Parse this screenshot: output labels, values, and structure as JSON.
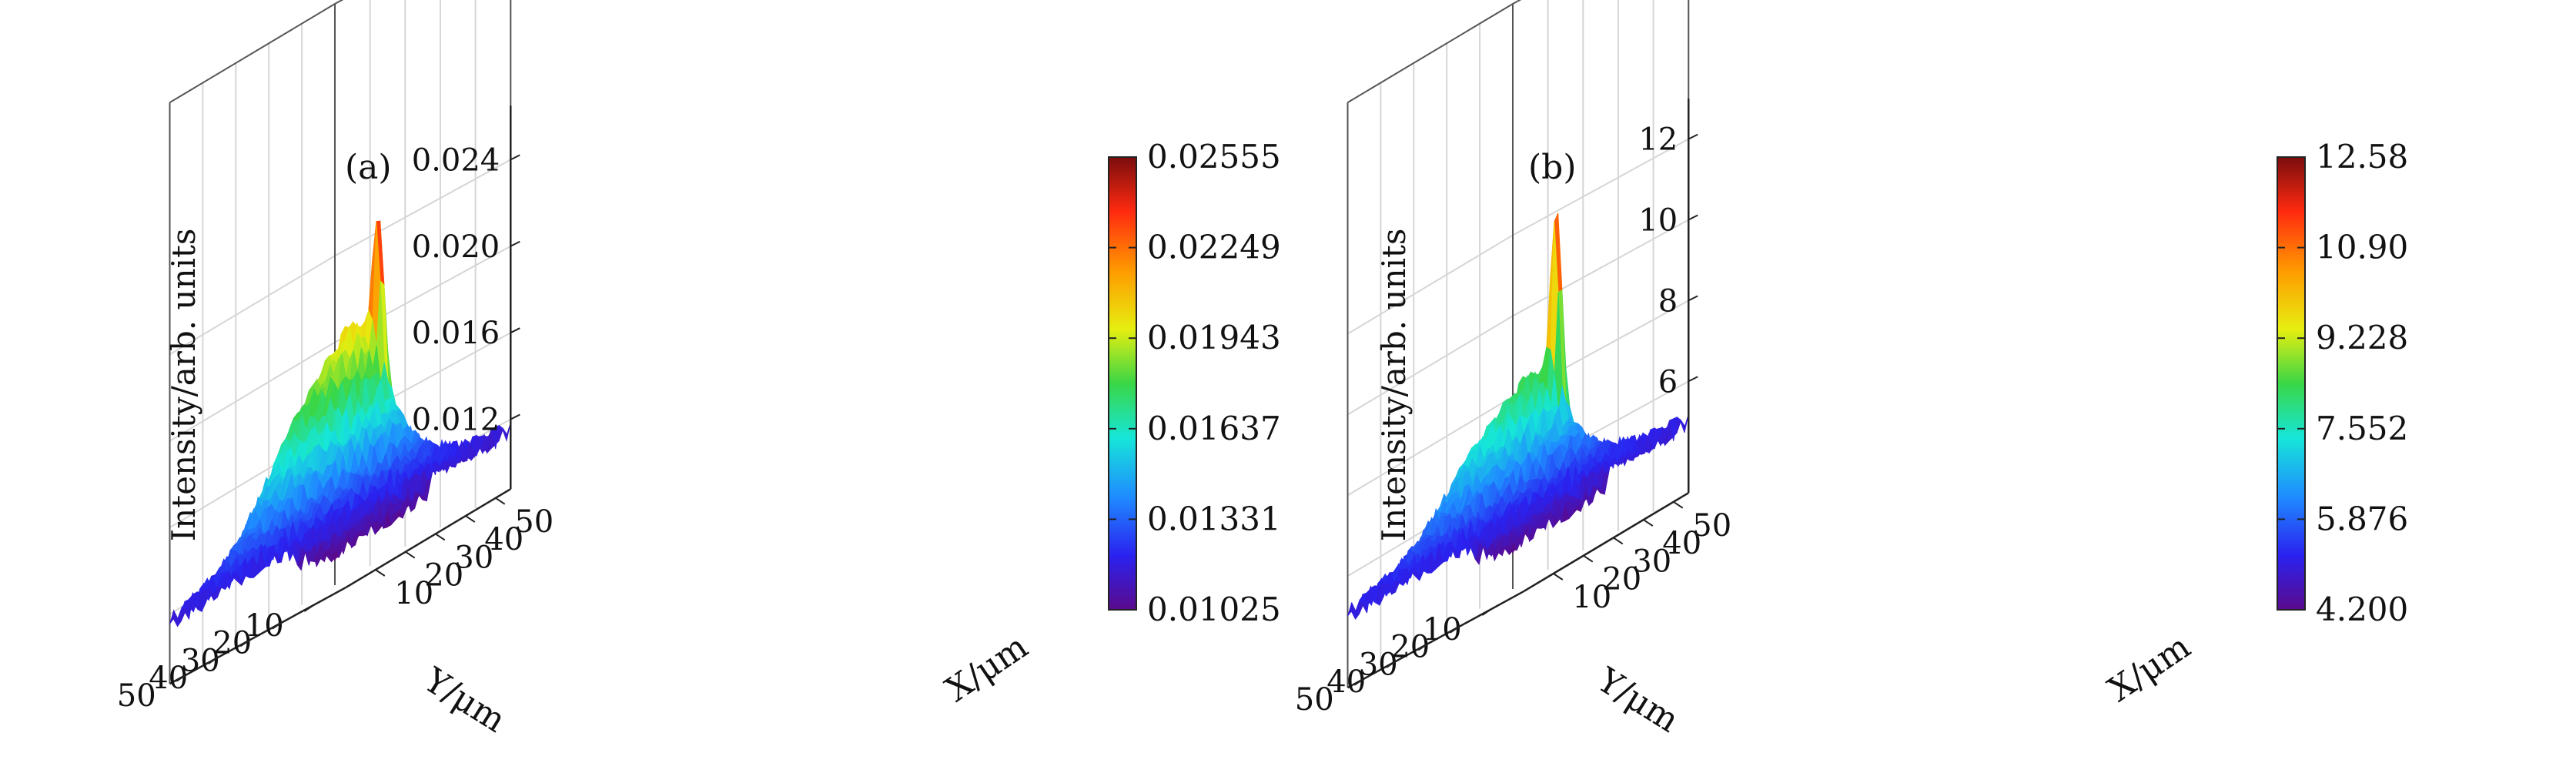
{
  "chart_data": [
    {
      "panel_label": "(a)",
      "type": "surface3d",
      "zlabel": "Intensity/arb. units",
      "xlabel": "X/μm",
      "ylabel": "Y/μm",
      "x_ticks": [
        10,
        20,
        30,
        40,
        50
      ],
      "y_ticks": [
        10,
        20,
        30,
        40,
        50
      ],
      "x_range": [
        0,
        55
      ],
      "y_range": [
        0,
        55
      ],
      "z_ticks": [
        "0.012",
        "0.016",
        "0.020",
        "0.024"
      ],
      "z_tick_values": [
        0.012,
        0.016,
        0.02,
        0.024
      ],
      "z_range": [
        0.0102,
        0.0265
      ],
      "colorbar_ticks": [
        "0.02555",
        "0.02249",
        "0.01943",
        "0.01637",
        "0.01331",
        "0.01025"
      ],
      "colorbar_range": [
        0.01025,
        0.02555
      ],
      "colormap": [
        "#5b0a8c",
        "#2a22f0",
        "#1f8cff",
        "#16e6d8",
        "#3ad646",
        "#e6ee10",
        "#ff9a00",
        "#ff2a10",
        "#7a0d0d"
      ],
      "peak": {
        "x": 28,
        "y": 40,
        "value": 0.02555
      },
      "plateau": {
        "x": 30,
        "y": 26,
        "value": 0.0185
      },
      "floor": 0.0115
    },
    {
      "panel_label": "(b)",
      "type": "surface3d",
      "zlabel": "Intensity/arb. units",
      "xlabel": "X/μm",
      "ylabel": "Y/μm",
      "x_ticks": [
        10,
        20,
        30,
        40,
        50
      ],
      "y_ticks": [
        10,
        20,
        30,
        40,
        50
      ],
      "x_range": [
        0,
        55
      ],
      "y_range": [
        0,
        55
      ],
      "z_ticks": [
        "6",
        "8",
        "10",
        "12"
      ],
      "z_tick_values": [
        6,
        8,
        10,
        12
      ],
      "z_range": [
        4.0,
        13.0
      ],
      "colorbar_ticks": [
        "12.58",
        "10.90",
        "9.228",
        "7.552",
        "5.876",
        "4.200"
      ],
      "colorbar_range": [
        4.2,
        12.58
      ],
      "colormap": [
        "#5b0a8c",
        "#2a22f0",
        "#1f8cff",
        "#16e6d8",
        "#3ad646",
        "#e6ee10",
        "#ff9a00",
        "#ff2a10",
        "#7a0d0d"
      ],
      "peak": {
        "x": 28,
        "y": 40,
        "value": 12.58
      },
      "plateau": {
        "x": 30,
        "y": 26,
        "value": 7.6
      },
      "floor": 5.0
    }
  ]
}
